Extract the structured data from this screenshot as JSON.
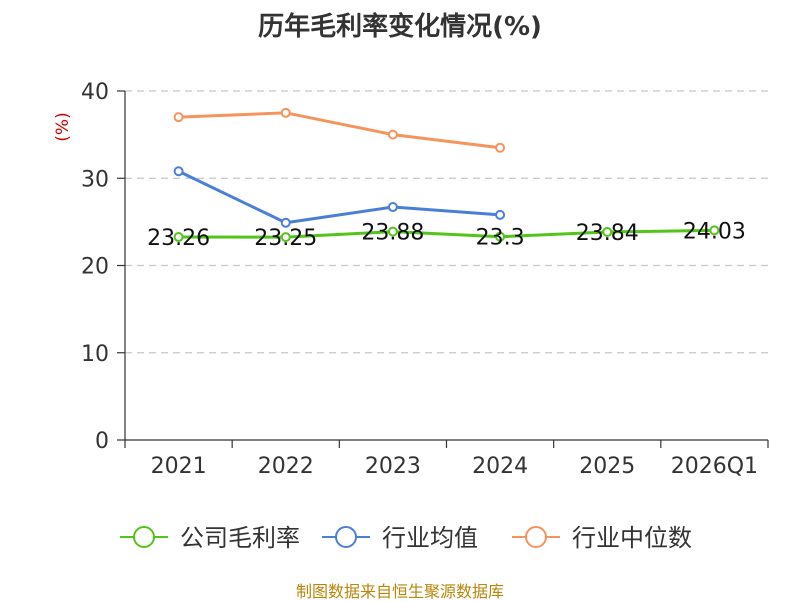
{
  "footer": "制图数据来自恒生聚源数据库",
  "chart_data": {
    "type": "line",
    "title": "历年毛利率变化情况(%)",
    "ylabel": "(%)",
    "xlabel": "",
    "ylim": [
      0,
      40
    ],
    "yticks": [
      0,
      10,
      20,
      30,
      40
    ],
    "categories": [
      "2021",
      "2022",
      "2023",
      "2024",
      "2025",
      "2026Q1"
    ],
    "grid": true,
    "legend_position": "bottom",
    "series": [
      {
        "name": "公司毛利率",
        "color": "#52c41a",
        "values": [
          23.26,
          23.25,
          23.88,
          23.3,
          23.84,
          24.03
        ],
        "labels": [
          "23.26",
          "23.25",
          "23.88",
          "23.3",
          "23.84",
          "24.03"
        ]
      },
      {
        "name": "行业均值",
        "color": "#4a7fd8",
        "values": [
          30.8,
          24.9,
          26.7,
          25.8,
          null,
          null
        ]
      },
      {
        "name": "行业中位数",
        "color": "#f5945c",
        "values": [
          37.0,
          37.5,
          35.0,
          33.5,
          null,
          null
        ]
      }
    ]
  }
}
